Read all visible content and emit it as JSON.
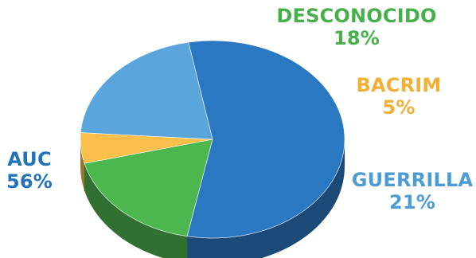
{
  "chart_data": {
    "type": "pie",
    "categories": [
      "AUC",
      "DESCONOCIDO",
      "BACRIM",
      "GUERRILLA"
    ],
    "values": [
      56,
      18,
      5,
      21
    ],
    "value_labels": [
      "56%",
      "18%",
      "5%",
      "21%"
    ],
    "colors": {
      "AUC": "#2B78C2",
      "DESCONOCIDO": "#4DB74F",
      "BACRIM": "#F9BF4A",
      "GUERRILLA": "#5AA6DC"
    },
    "label_colors": {
      "AUC": "#2273BA",
      "DESCONOCIDO": "#46B14A",
      "BACRIM": "#F2B136",
      "GUERRILLA": "#4D9CD6"
    },
    "style": "3d-tilted"
  }
}
